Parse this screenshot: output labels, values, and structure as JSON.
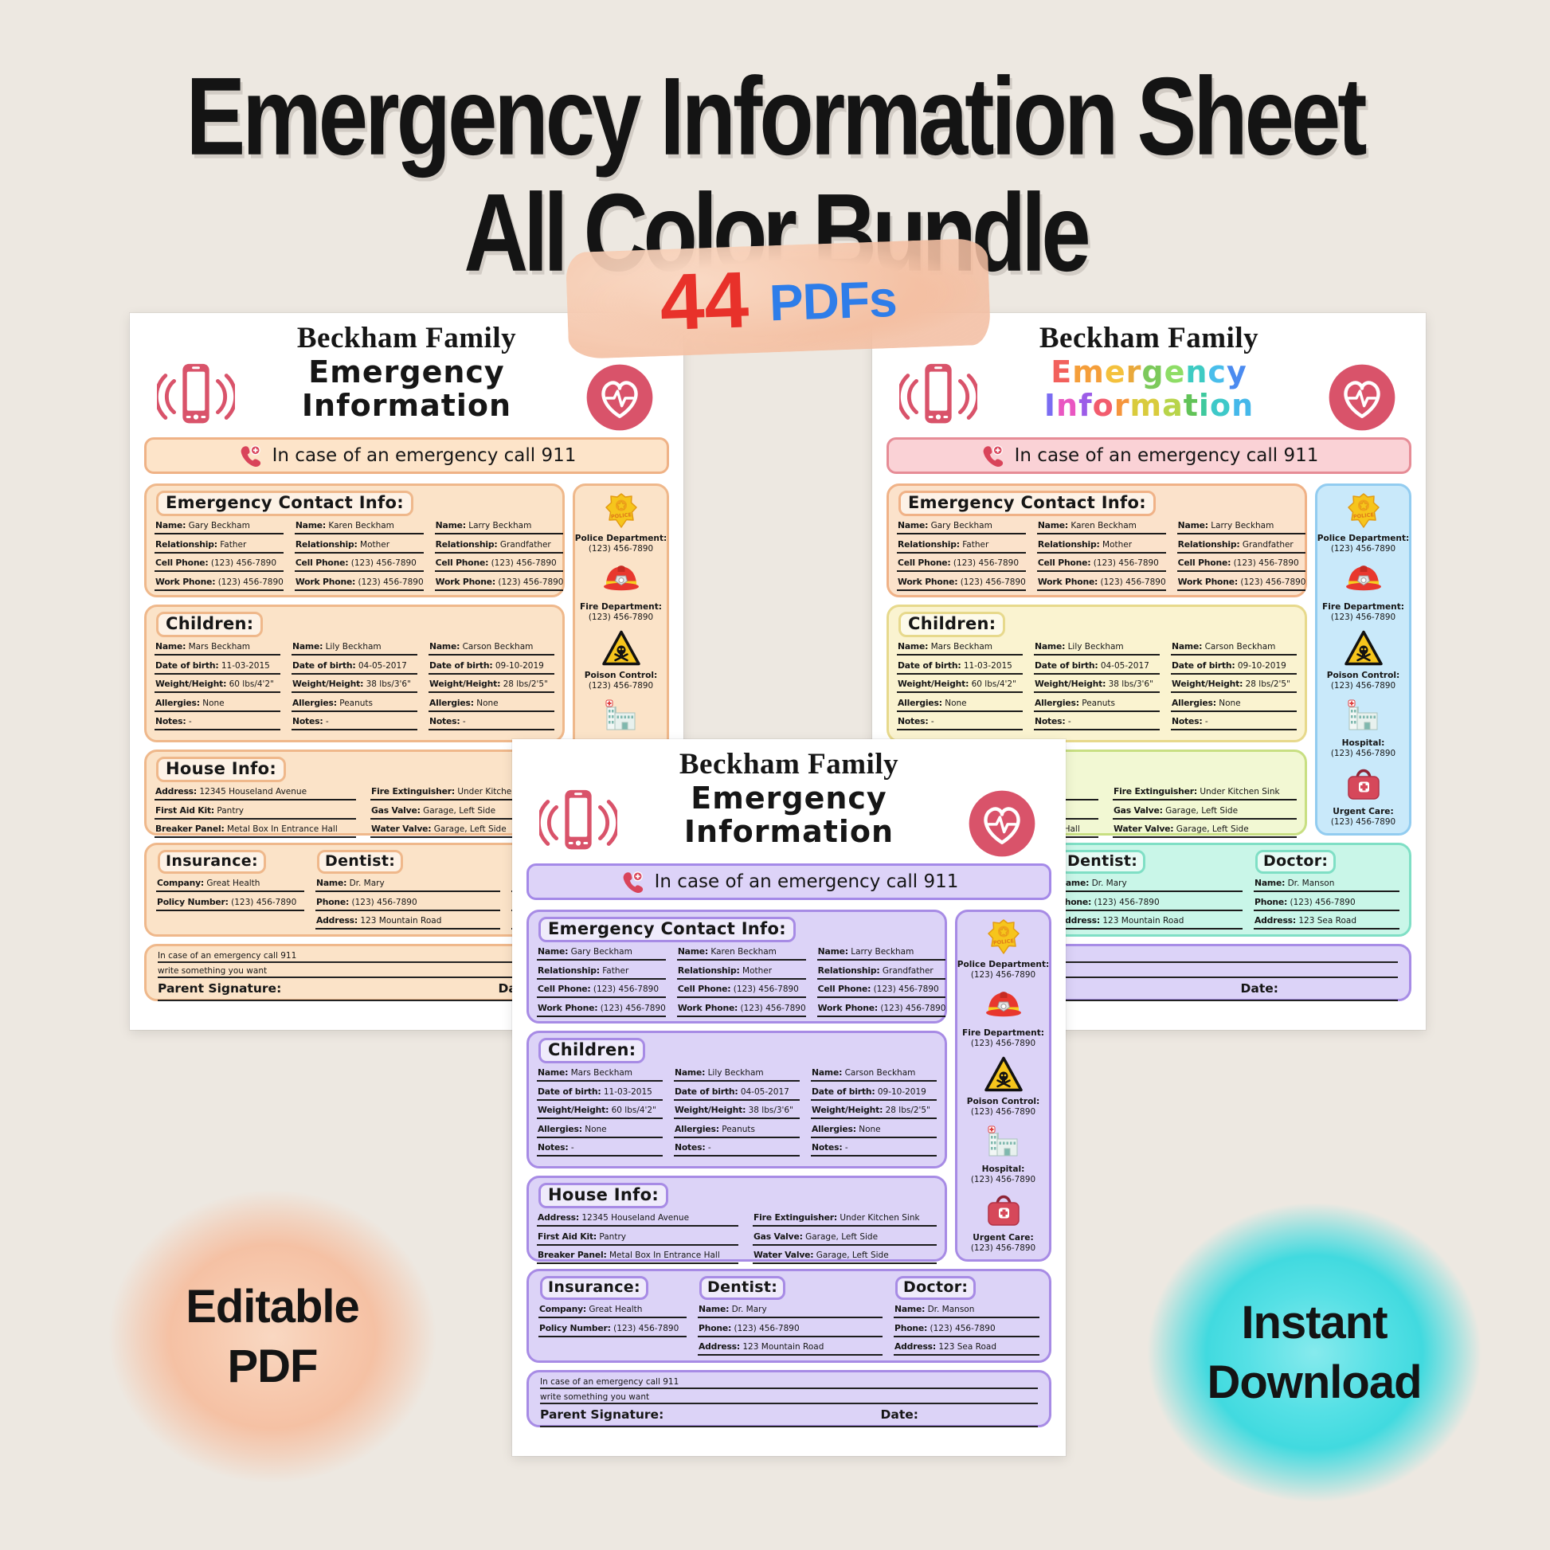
{
  "page": {
    "background": "#EDE8E1"
  },
  "title": {
    "line1": "Emergency Information Sheet",
    "line2": "All Color Bundle",
    "color": "#141414"
  },
  "badge": {
    "count": "44",
    "label": "PDFs",
    "count_color": "#E8312A",
    "label_color": "#2E7DE9",
    "wash_color": "#F2BCA0"
  },
  "stickers": {
    "editable": {
      "line1": "Editable",
      "line2": "PDF",
      "wash_color": "#F5C1A4"
    },
    "instant": {
      "line1": "Instant",
      "line2": "Download",
      "wash_color": "#41DADF"
    }
  },
  "sheet": {
    "family": "Beckham Family",
    "title_word1": "Emergency",
    "title_word2": "Information",
    "banner": "In case of an emergency call 911",
    "contact": {
      "heading": "Emergency Contact Info:",
      "entries": [
        {
          "rows": [
            {
              "label": "Name:",
              "value": "Gary Beckham"
            },
            {
              "label": "Relationship:",
              "value": "Father"
            },
            {
              "label": "Cell Phone:",
              "value": "(123) 456-7890"
            },
            {
              "label": "Work Phone:",
              "value": "(123) 456-7890"
            }
          ]
        },
        {
          "rows": [
            {
              "label": "Name:",
              "value": "Karen Beckham"
            },
            {
              "label": "Relationship:",
              "value": "Mother"
            },
            {
              "label": "Cell Phone:",
              "value": "(123) 456-7890"
            },
            {
              "label": "Work Phone:",
              "value": "(123) 456-7890"
            }
          ]
        },
        {
          "rows": [
            {
              "label": "Name:",
              "value": "Larry Beckham"
            },
            {
              "label": "Relationship:",
              "value": "Grandfather"
            },
            {
              "label": "Cell Phone:",
              "value": "(123) 456-7890"
            },
            {
              "label": "Work Phone:",
              "value": "(123) 456-7890"
            }
          ]
        }
      ]
    },
    "children": {
      "heading": "Children:",
      "entries": [
        {
          "rows": [
            {
              "label": "Name:",
              "value": "Mars Beckham"
            },
            {
              "label": "Date of birth:",
              "value": "11-03-2015"
            },
            {
              "label": "Weight/Height:",
              "value": "60 lbs/4'2\""
            },
            {
              "label": "Allergies:",
              "value": "None"
            },
            {
              "label": "Notes:",
              "value": "-"
            }
          ]
        },
        {
          "rows": [
            {
              "label": "Name:",
              "value": "Lily Beckham"
            },
            {
              "label": "Date of birth:",
              "value": "04-05-2017"
            },
            {
              "label": "Weight/Height:",
              "value": "38 lbs/3'6\""
            },
            {
              "label": "Allergies:",
              "value": "Peanuts"
            },
            {
              "label": "Notes:",
              "value": "-"
            }
          ]
        },
        {
          "rows": [
            {
              "label": "Name:",
              "value": "Carson Beckham"
            },
            {
              "label": "Date of birth:",
              "value": "09-10-2019"
            },
            {
              "label": "Weight/Height:",
              "value": "28 lbs/2'5\""
            },
            {
              "label": "Allergies:",
              "value": "None"
            },
            {
              "label": "Notes:",
              "value": "-"
            }
          ]
        }
      ]
    },
    "house": {
      "heading": "House Info:",
      "left_rows": [
        {
          "label": "Address:",
          "value": "12345 Houseland Avenue"
        },
        {
          "label": "First Aid Kit:",
          "value": "Pantry"
        },
        {
          "label": "Breaker Panel:",
          "value": "Metal Box In Entrance Hall"
        }
      ],
      "right_rows": [
        {
          "label": "Fire Extinguisher:",
          "value": "Under Kitchen Sink"
        },
        {
          "label": "Gas Valve:",
          "value": "Garage, Left Side"
        },
        {
          "label": "Water Valve:",
          "value": "Garage, Left Side"
        }
      ]
    },
    "insurance": {
      "heading": "Insurance:",
      "rows": [
        {
          "label": "Company:",
          "value": "Great Health"
        },
        {
          "label": "Policy Number:",
          "value": "(123) 456-7890"
        }
      ]
    },
    "dentist": {
      "heading": "Dentist:",
      "rows": [
        {
          "label": "Name:",
          "value": "Dr. Mary"
        },
        {
          "label": "Phone:",
          "value": "(123) 456-7890"
        },
        {
          "label": "Address:",
          "value": "123 Mountain Road"
        }
      ]
    },
    "doctor": {
      "heading": "Doctor:",
      "rows": [
        {
          "label": "Name:",
          "value": "Dr. Manson"
        },
        {
          "label": "Phone:",
          "value": "(123) 456-7890"
        },
        {
          "label": "Address:",
          "value": "123 Sea Road"
        }
      ]
    },
    "signature": {
      "line1": "In case of an emergency call 911",
      "line2": "write something you want",
      "parent_label": "Parent Signature:",
      "date_label": "Date:"
    },
    "sidebar": {
      "items": [
        {
          "icon": "police-badge-icon",
          "label": "Police Department:",
          "phone": "(123) 456-7890"
        },
        {
          "icon": "fire-helmet-icon",
          "label": "Fire Department:",
          "phone": "(123) 456-7890"
        },
        {
          "icon": "poison-skull-icon",
          "label": "Poison Control:",
          "phone": "(123) 456-7890"
        },
        {
          "icon": "hospital-icon",
          "label": "Hospital:",
          "phone": "(123) 456-7890"
        },
        {
          "icon": "first-aid-kit-icon",
          "label": "Urgent Care:",
          "phone": "(123) 456-7890"
        }
      ]
    }
  },
  "themes": [
    {
      "name": "peach",
      "title_style": "plain",
      "sections": {
        "banner": [
          "#FDE4C9",
          "#EFB286"
        ],
        "contact": [
          "#FBE3C8",
          "#EFB88B"
        ],
        "children": [
          "#FBE3C8",
          "#EFB88B"
        ],
        "house": [
          "#FBE3C8",
          "#EFB88B"
        ],
        "docs": [
          "#FBE3C8",
          "#EFB88B"
        ],
        "signature": [
          "#FBE3C8",
          "#EFB88B"
        ],
        "sidebar": [
          "#FBE3C8",
          "#EFB88B"
        ]
      }
    },
    {
      "name": "rainbow",
      "title_style": "rainbow",
      "rainbow": [
        "#F2605C",
        "#F59E3A",
        "#F4C13D",
        "#E9A93C",
        "#7CC95B",
        "#8EDD66",
        "#3ECBC3",
        "#49BEEB",
        "#4B8BF0",
        "#7A6CF2",
        "#E957C2",
        "#9C5CE8",
        "#F25C6E",
        "#F5953C",
        "#D9CB3D",
        "#B8D44A",
        "#62C358",
        "#3FC99E",
        "#3EC9C9",
        "#45B8EA"
      ],
      "sections": {
        "banner": [
          "#FAD2D6",
          "#E68C96"
        ],
        "contact": [
          "#FBE2CB",
          "#F0B287"
        ],
        "children": [
          "#FAF3D0",
          "#E7D98C"
        ],
        "house": [
          "#F2F8D3",
          "#C8DF82"
        ],
        "docs": [
          "#C9F6E8",
          "#7FDFC5"
        ],
        "signature": [
          "#DCD3F8",
          "#A78CE6"
        ],
        "sidebar": [
          "#C9E9FA",
          "#92CCF0"
        ]
      }
    },
    {
      "name": "purple",
      "title_style": "plain",
      "sections": {
        "banner": [
          "#DDD3F8",
          "#A489E8"
        ],
        "contact": [
          "#DCD3F7",
          "#A78BE5"
        ],
        "children": [
          "#DCD3F7",
          "#A78BE5"
        ],
        "house": [
          "#DCD3F7",
          "#A78BE5"
        ],
        "docs": [
          "#DCD3F7",
          "#A78BE5"
        ],
        "signature": [
          "#DCD3F7",
          "#A78BE5"
        ],
        "sidebar": [
          "#DCD3F7",
          "#A78BE5"
        ]
      }
    }
  ]
}
